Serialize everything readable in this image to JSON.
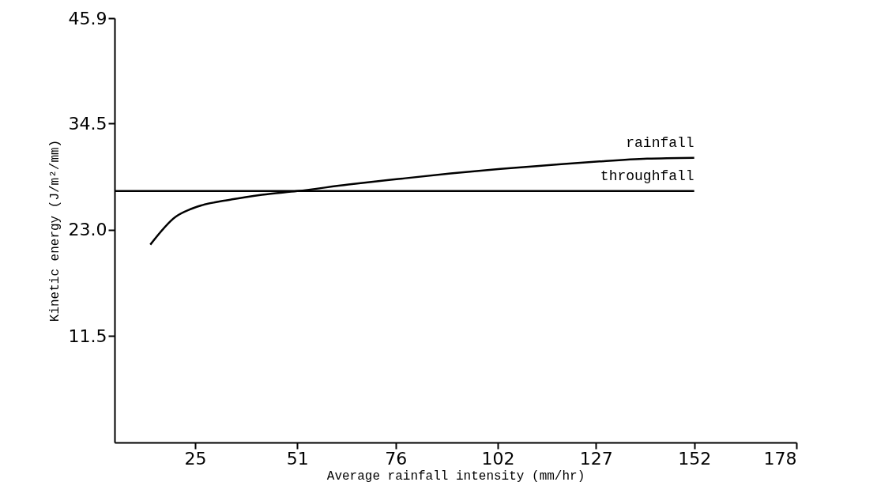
{
  "chart_data": {
    "type": "line",
    "xlabel": "Average rainfall intensity (mm/hr)",
    "ylabel": "Kinetic energy (J/m²/mm)",
    "xlim": [
      4.5,
      178
    ],
    "xticks": [
      25,
      51,
      76,
      102,
      127,
      152,
      178
    ],
    "ylim": [
      0,
      45.9
    ],
    "yticks": [
      {
        "value": 11.5,
        "label": "11.5"
      },
      {
        "value": 23,
        "label": "23.0"
      },
      {
        "value": 34.5,
        "label": "34.5"
      },
      {
        "value": 45.9,
        "label": "45.9"
      }
    ],
    "grid": false,
    "legend": false,
    "line_style": "solid",
    "series": [
      {
        "name": "rainfall",
        "color": "#000000",
        "x": [
          13.6,
          20,
          24.2,
          34.4,
          42,
          51,
          64,
          76.7,
          90,
          102.7,
          115,
          127.9,
          140,
          152
        ],
        "values": [
          21.4,
          24.4,
          25.3,
          26.3,
          26.8,
          27.2,
          27.9,
          28.5,
          29.1,
          29.6,
          30.0,
          30.4,
          30.7,
          30.8
        ]
      },
      {
        "name": "throughfall",
        "color": "#000000",
        "x": [
          4.5,
          152
        ],
        "values": [
          27.2,
          27.2
        ]
      }
    ]
  }
}
